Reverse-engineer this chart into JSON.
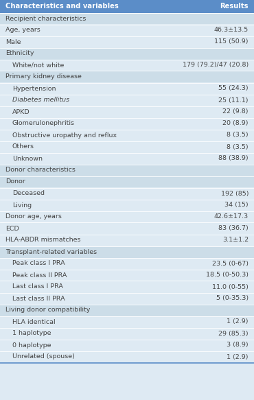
{
  "title_col1": "Characteristics and variables",
  "title_col2": "Results",
  "header_bg": "#5b8dc8",
  "header_fg": "#ffffff",
  "row_bg_section": "#ccdde8",
  "row_bg_data": "#deeaf3",
  "text_color": "#444444",
  "figwidth": 3.7,
  "figheight": 5.83,
  "dpi": 100,
  "rows": [
    {
      "label": "Recipient characteristics",
      "value": "",
      "indent": 0,
      "italic": false,
      "section_header": true
    },
    {
      "label": "Age, years",
      "value": "46.3±13.5",
      "indent": 0,
      "italic": false,
      "section_header": false
    },
    {
      "label": "Male",
      "value": "115 (50.9)",
      "indent": 0,
      "italic": false,
      "section_header": false
    },
    {
      "label": "Ethnicity",
      "value": "",
      "indent": 0,
      "italic": false,
      "section_header": true
    },
    {
      "label": "White/not white",
      "value": "179 (79.2)/47 (20.8)",
      "indent": 1,
      "italic": false,
      "section_header": false
    },
    {
      "label": "Primary kidney disease",
      "value": "",
      "indent": 0,
      "italic": false,
      "section_header": true
    },
    {
      "label": "Hypertension",
      "value": "55 (24.3)",
      "indent": 1,
      "italic": false,
      "section_header": false
    },
    {
      "label": "Diabetes mellitus",
      "value": "25 (11.1)",
      "indent": 1,
      "italic": true,
      "section_header": false
    },
    {
      "label": "APKD",
      "value": "22 (9.8)",
      "indent": 1,
      "italic": false,
      "section_header": false
    },
    {
      "label": "Glomerulonephritis",
      "value": "20 (8.9)",
      "indent": 1,
      "italic": false,
      "section_header": false
    },
    {
      "label": "Obstructive uropathy and reflux",
      "value": "8 (3.5)",
      "indent": 1,
      "italic": false,
      "section_header": false
    },
    {
      "label": "Others",
      "value": "8 (3.5)",
      "indent": 1,
      "italic": false,
      "section_header": false
    },
    {
      "label": "Unknown",
      "value": "88 (38.9)",
      "indent": 1,
      "italic": false,
      "section_header": false
    },
    {
      "label": "Donor characteristics",
      "value": "",
      "indent": 0,
      "italic": false,
      "section_header": true
    },
    {
      "label": "Donor",
      "value": "",
      "indent": 0,
      "italic": false,
      "section_header": true
    },
    {
      "label": "Deceased",
      "value": "192 (85)",
      "indent": 1,
      "italic": false,
      "section_header": false
    },
    {
      "label": "Living",
      "value": "34 (15)",
      "indent": 1,
      "italic": false,
      "section_header": false
    },
    {
      "label": "Donor age, years",
      "value": "42.6±17.3",
      "indent": 0,
      "italic": false,
      "section_header": false
    },
    {
      "label": "ECD",
      "value": "83 (36.7)",
      "indent": 0,
      "italic": false,
      "section_header": false
    },
    {
      "label": "HLA-ABDR mismatches",
      "value": "3.1±1.2",
      "indent": 0,
      "italic": false,
      "section_header": false
    },
    {
      "label": "Transplant-related variables",
      "value": "",
      "indent": 0,
      "italic": false,
      "section_header": true
    },
    {
      "label": "Peak class I PRA",
      "value": "23.5 (0-67)",
      "indent": 1,
      "italic": false,
      "section_header": false
    },
    {
      "label": "Peak class II PRA",
      "value": "18.5 (0-50.3)",
      "indent": 1,
      "italic": false,
      "section_header": false
    },
    {
      "label": "Last class I PRA",
      "value": "11.0 (0-55)",
      "indent": 1,
      "italic": false,
      "section_header": false
    },
    {
      "label": "Last class II PRA",
      "value": "5 (0-35.3)",
      "indent": 1,
      "italic": false,
      "section_header": false
    },
    {
      "label": "Living donor compatibility",
      "value": "",
      "indent": 0,
      "italic": false,
      "section_header": true
    },
    {
      "label": "HLA identical",
      "value": "1 (2.9)",
      "indent": 1,
      "italic": false,
      "section_header": false
    },
    {
      "label": "1 haplotype",
      "value": "29 (85.3)",
      "indent": 1,
      "italic": false,
      "section_header": false
    },
    {
      "label": "0 haplotype",
      "value": "3 (8.9)",
      "indent": 1,
      "italic": false,
      "section_header": false
    },
    {
      "label": "Unrelated (spouse)",
      "value": "1 (2.9)",
      "indent": 1,
      "italic": false,
      "section_header": false
    }
  ]
}
